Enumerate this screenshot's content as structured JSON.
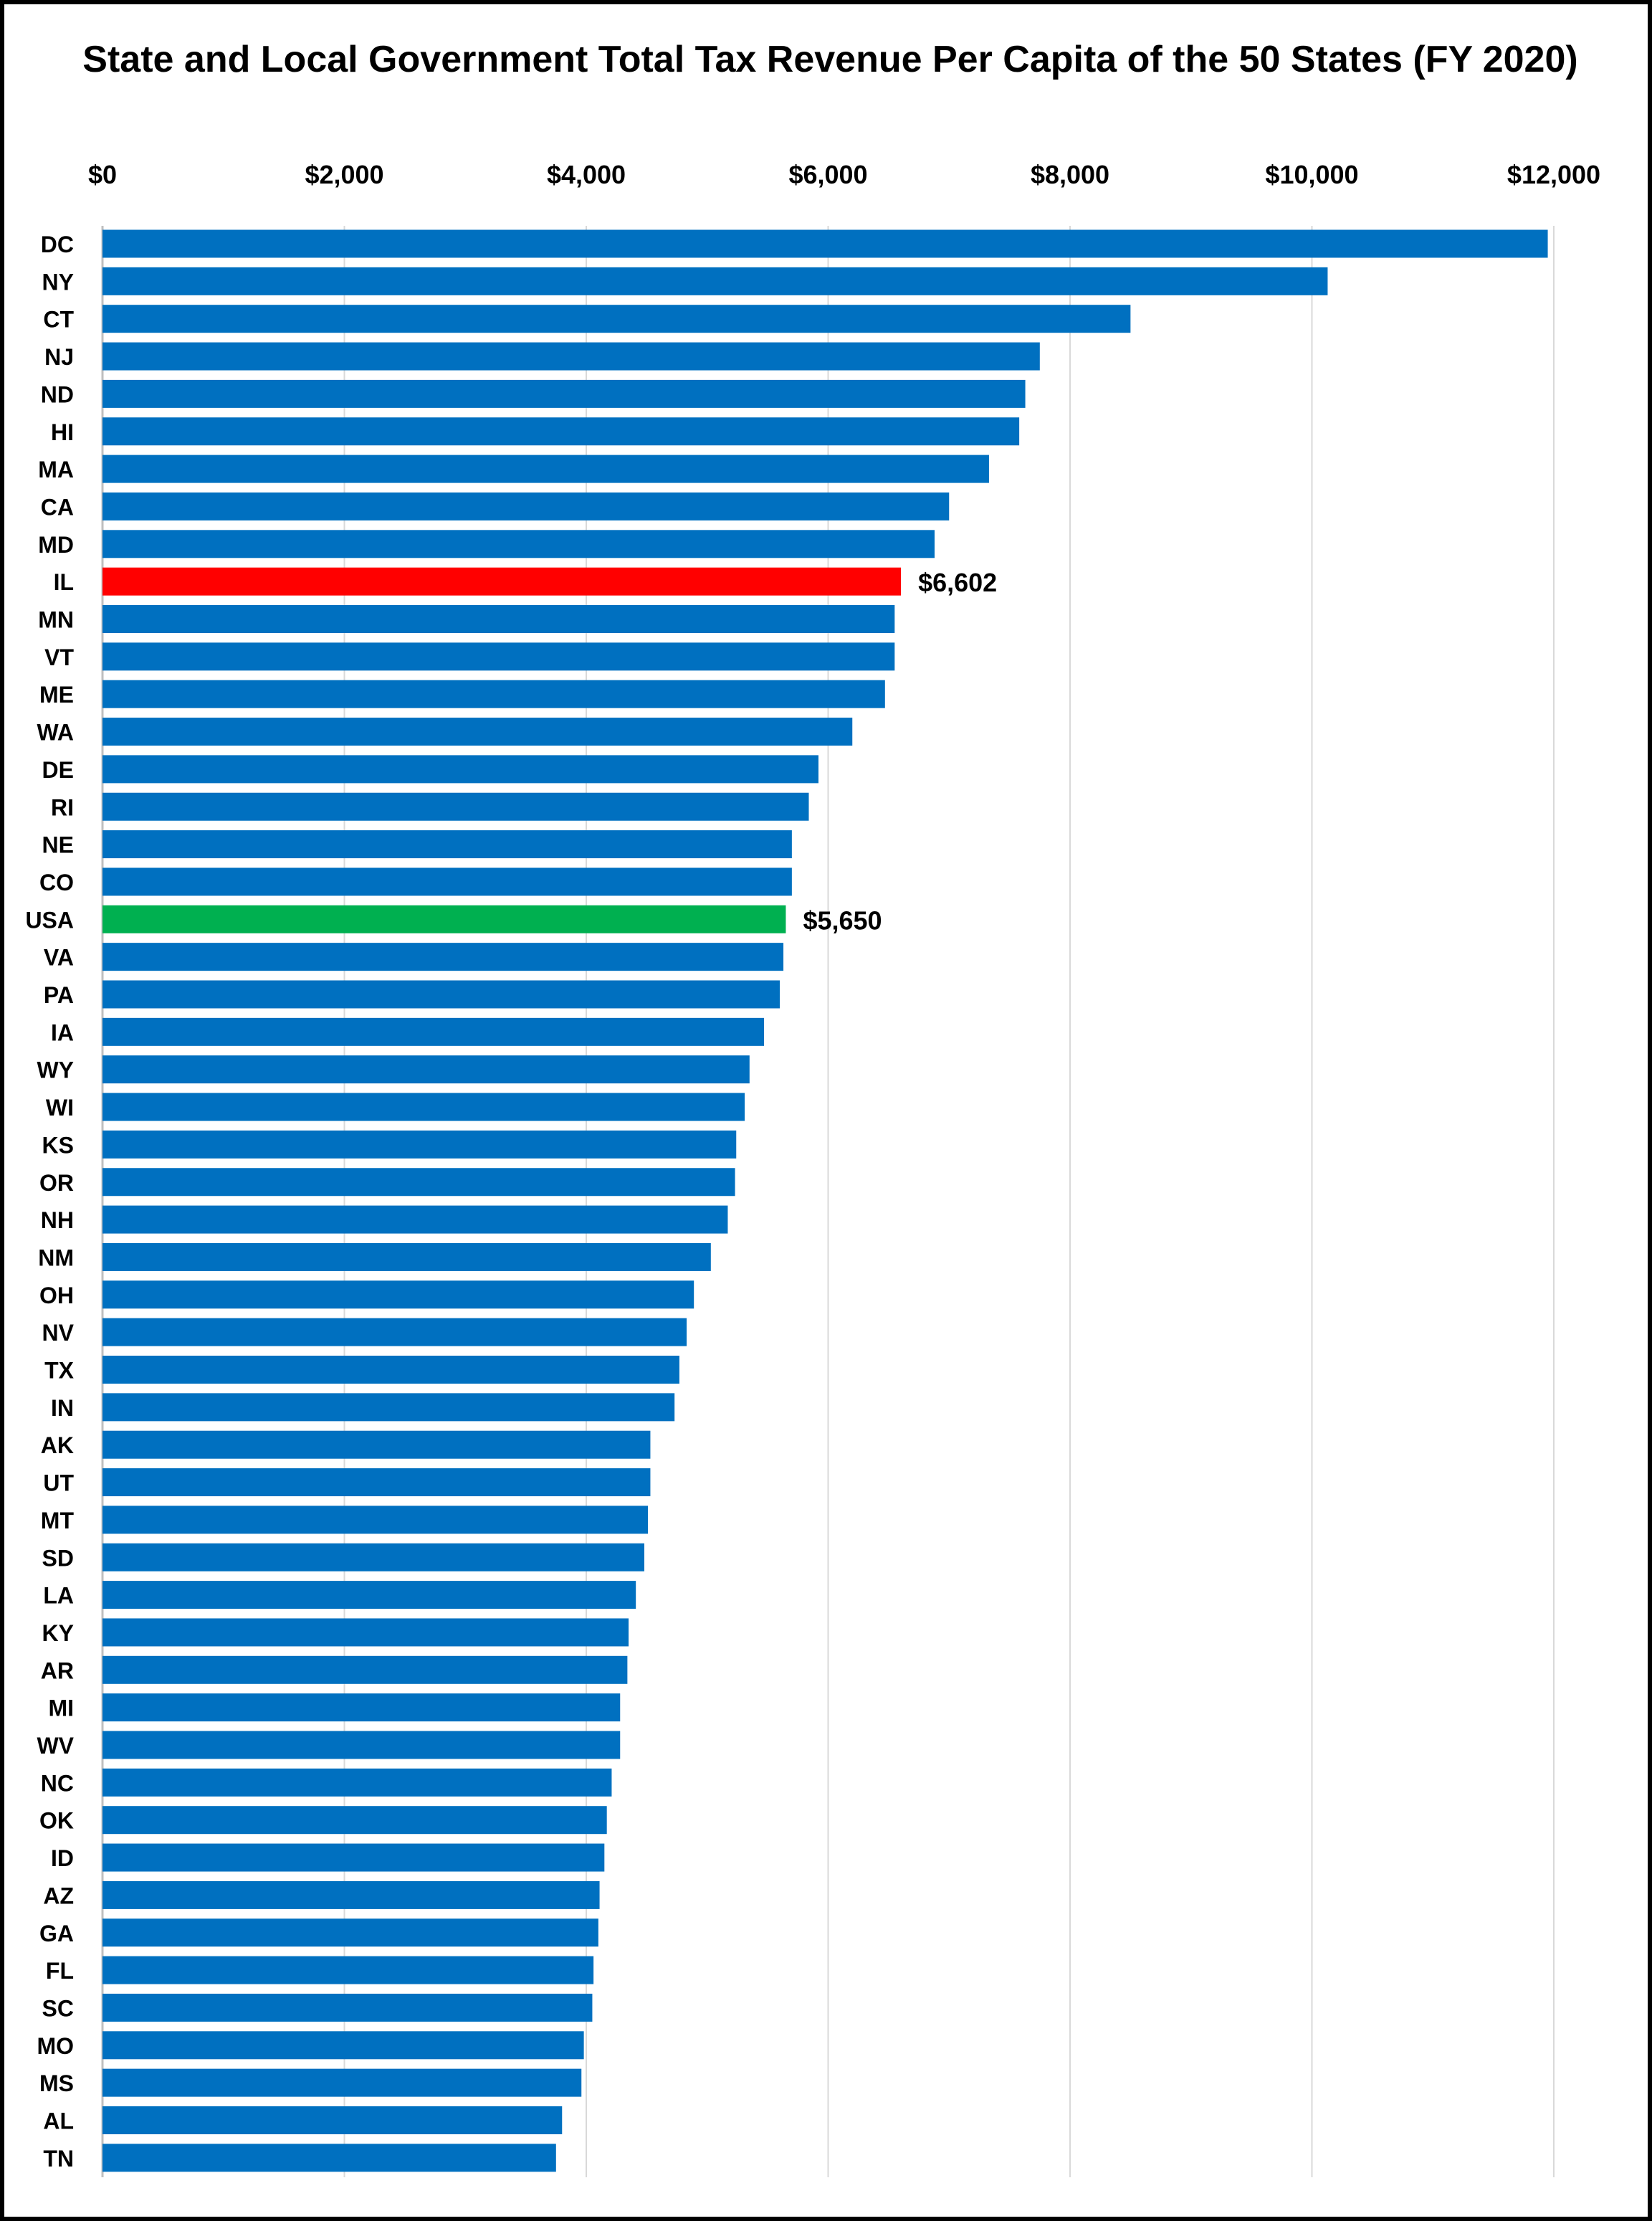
{
  "chart_data": {
    "type": "bar",
    "orientation": "horizontal",
    "title": "State and Local Government Total Tax Revenue Per Capita of the 50 States (FY 2020)",
    "xlabel": "",
    "ylabel": "",
    "xlim": [
      0,
      12000
    ],
    "x_ticks": [
      0,
      2000,
      4000,
      6000,
      8000,
      10000,
      12000
    ],
    "x_tick_labels": [
      "$0",
      "$2,000",
      "$4,000",
      "$6,000",
      "$8,000",
      "$10,000",
      "$12,000"
    ],
    "x_axis_position": "top",
    "grid": "vertical",
    "legend": "none",
    "colors": {
      "default": "#0070C0",
      "highlight_state": "#FF0000",
      "highlight_national": "#00B050",
      "gridline": "#D9D9D9"
    },
    "categories": [
      "DC",
      "NY",
      "CT",
      "NJ",
      "ND",
      "HI",
      "MA",
      "CA",
      "MD",
      "IL",
      "MN",
      "VT",
      "ME",
      "WA",
      "DE",
      "RI",
      "NE",
      "CO",
      "USA",
      "VA",
      "PA",
      "IA",
      "WY",
      "WI",
      "KS",
      "OR",
      "NH",
      "NM",
      "OH",
      "NV",
      "TX",
      "IN",
      "AK",
      "UT",
      "MT",
      "SD",
      "LA",
      "KY",
      "AR",
      "MI",
      "WV",
      "NC",
      "OK",
      "ID",
      "AZ",
      "GA",
      "FL",
      "SC",
      "MO",
      "MS",
      "AL",
      "TN"
    ],
    "values": [
      11950,
      10130,
      8500,
      7750,
      7630,
      7580,
      7330,
      7000,
      6880,
      6602,
      6550,
      6550,
      6470,
      6200,
      5920,
      5840,
      5700,
      5700,
      5650,
      5630,
      5600,
      5470,
      5350,
      5310,
      5240,
      5230,
      5170,
      5030,
      4890,
      4830,
      4770,
      4730,
      4530,
      4530,
      4510,
      4480,
      4410,
      4350,
      4340,
      4280,
      4280,
      4210,
      4170,
      4150,
      4110,
      4100,
      4060,
      4050,
      3980,
      3960,
      3800,
      3750
    ],
    "highlights": [
      {
        "category": "IL",
        "color": "#FF0000",
        "label": "$6,602"
      },
      {
        "category": "USA",
        "color": "#00B050",
        "label": "$5,650"
      }
    ]
  }
}
